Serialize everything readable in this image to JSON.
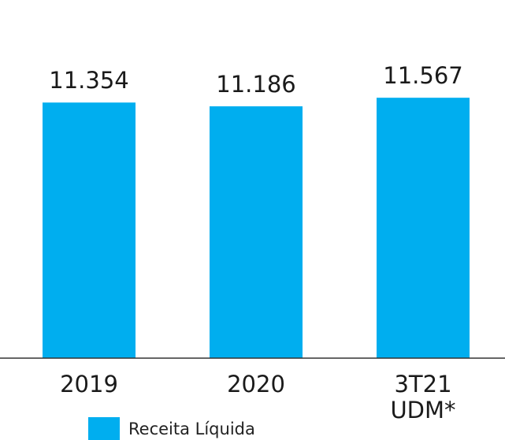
{
  "chart_data": {
    "type": "bar",
    "categories": [
      "2019",
      "2020",
      "3T21 UDM*"
    ],
    "series": [
      {
        "name": "Receita Líquida",
        "color": "#00aeef",
        "values": [
          11354,
          11186,
          11567
        ],
        "value_labels": [
          "11.354",
          "11.186",
          "11.567"
        ]
      }
    ],
    "ylim": [
      0,
      15000
    ]
  }
}
